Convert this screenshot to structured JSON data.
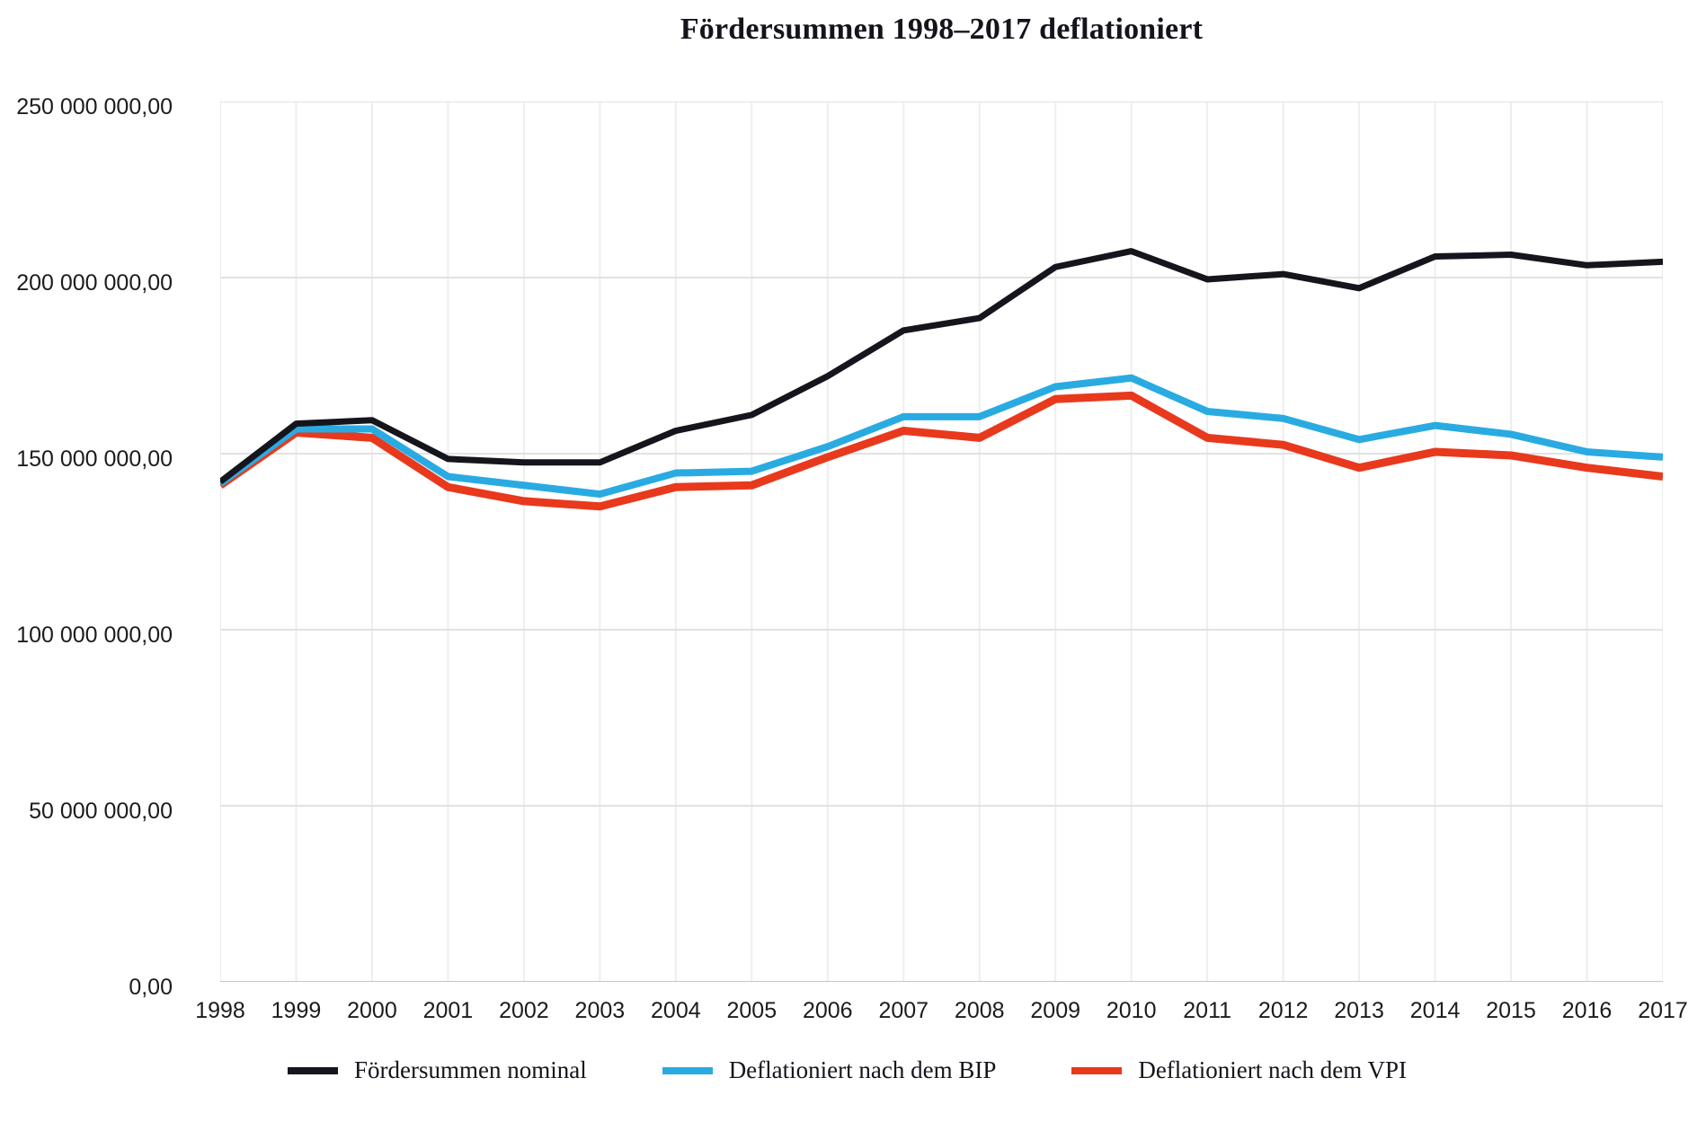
{
  "chart_data": {
    "type": "line",
    "title": "Fördersummen 1998–2017 deflationiert",
    "x_categories": [
      "1998",
      "1999",
      "2000",
      "2001",
      "2002",
      "2003",
      "2004",
      "2005",
      "2006",
      "2007",
      "2008",
      "2009",
      "2010",
      "2011",
      "2012",
      "2013",
      "2014",
      "2015",
      "2016",
      "2017"
    ],
    "ylim": [
      0,
      250000000
    ],
    "y_tick_values": [
      0,
      50000000,
      100000000,
      150000000,
      200000000,
      250000000
    ],
    "y_tick_labels": [
      "0,00",
      "50 000 000,00",
      "100 000 000,00",
      "150 000 000,00",
      "200 000 000,00",
      "250 000 000,00"
    ],
    "grid": "on",
    "legend_position": "bottom",
    "series": [
      {
        "name": "Fördersummen nominal",
        "color": "#15151d",
        "values": [
          142000000,
          158500000,
          159500000,
          148500000,
          147500000,
          147500000,
          156500000,
          161000000,
          172000000,
          185000000,
          188500000,
          203000000,
          207500000,
          199500000,
          201000000,
          197000000,
          206000000,
          206500000,
          203500000,
          204500000
        ]
      },
      {
        "name": "Deflationiert nach dem BIP",
        "color": "#29abe2",
        "values": [
          141500000,
          157000000,
          157000000,
          143500000,
          141000000,
          138500000,
          144500000,
          145000000,
          152000000,
          160500000,
          160500000,
          169000000,
          171500000,
          162000000,
          160000000,
          154000000,
          158000000,
          155500000,
          150500000,
          149000000
        ]
      },
      {
        "name": "Deflationiert nach dem VPI",
        "color": "#e8391d",
        "values": [
          141000000,
          156000000,
          154500000,
          140500000,
          136500000,
          135000000,
          140500000,
          141000000,
          149000000,
          156500000,
          154500000,
          165500000,
          166500000,
          154500000,
          152500000,
          146000000,
          150500000,
          149500000,
          146000000,
          143500000
        ]
      }
    ],
    "axis_colors": {
      "h_gridline": "#e2e2e2",
      "v_gridline": "#eeeeee",
      "zero_line": "#c6c6c6"
    }
  }
}
